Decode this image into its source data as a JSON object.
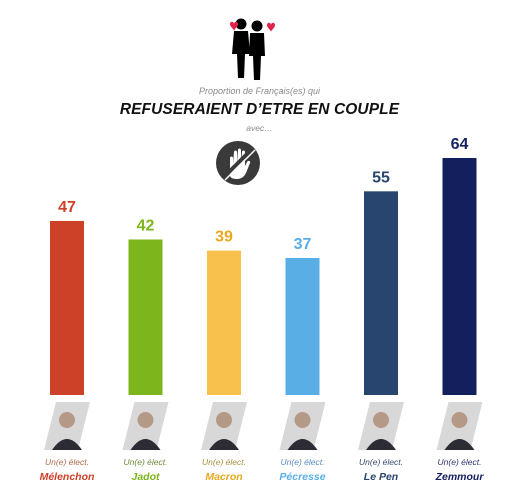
{
  "header": {
    "subtitle": "Proportion de Français(es) qui",
    "title": "REFUSERAIENT D’ETRE EN COUPLE",
    "avec": "avec…",
    "couple_icon": "couple-hearts-icon",
    "refuse_icon": "stop-hand-icon"
  },
  "chart_data": {
    "type": "bar",
    "title": "REFUSERAIENT D’ETRE EN COUPLE",
    "subtitle": "Proportion de Français(es) qui",
    "xlabel": "",
    "ylabel": "",
    "ylim": [
      0,
      64
    ],
    "grid": false,
    "legend": "none",
    "categories": [
      "Mélenchon",
      "Jadot",
      "Macron",
      "Pécresse",
      "Le Pen",
      "Zemmour"
    ],
    "values": [
      47,
      42,
      39,
      37,
      55,
      64
    ],
    "category_prefix": "Un(e) élect.",
    "colors": [
      "#cc4128",
      "#7cb51c",
      "#f8c04c",
      "#5aaee6",
      "#27456e",
      "#141f5e"
    ],
    "label_colors": [
      "#cc4128",
      "#7cb51c",
      "#e8a820",
      "#5aaee6",
      "#27456e",
      "#141f5e"
    ],
    "prefix_colors": [
      "#b06a4a",
      "#6a8a3a",
      "#a89040",
      "#5a8ac0",
      "#3a4a70",
      "#2a3470"
    ]
  }
}
